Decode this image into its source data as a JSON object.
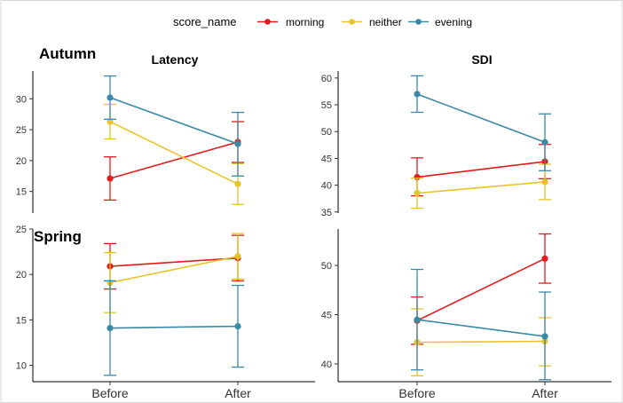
{
  "legend": {
    "title": "score_name",
    "entries": [
      {
        "label": "morning",
        "color": "#e41a1c"
      },
      {
        "label": "neither",
        "color": "#e8c42a"
      },
      {
        "label": "evening",
        "color": "#3a8aa6"
      }
    ]
  },
  "rows": [
    {
      "label": "Autumn"
    },
    {
      "label": "Spring"
    }
  ],
  "chart_data": [
    {
      "type": "line",
      "title": "Latency",
      "season": "Autumn",
      "categories": [
        "Before",
        "After"
      ],
      "ylim": [
        11.5,
        34.5
      ],
      "yticks": [
        15,
        20,
        25,
        30
      ],
      "series": [
        {
          "name": "morning",
          "color": "#e41a1c",
          "values": [
            17.1,
            23.0
          ],
          "err_low": [
            13.6,
            19.7
          ],
          "err_high": [
            20.6,
            26.3
          ]
        },
        {
          "name": "neither",
          "color": "#e8c42a",
          "values": [
            26.3,
            16.2
          ],
          "err_low": [
            23.5,
            12.9
          ],
          "err_high": [
            29.1,
            19.5
          ]
        },
        {
          "name": "evening",
          "color": "#3a8aa6",
          "values": [
            30.2,
            22.7
          ],
          "err_low": [
            26.7,
            17.5
          ],
          "err_high": [
            33.7,
            27.8
          ]
        }
      ]
    },
    {
      "type": "line",
      "title": "SDI",
      "season": "Autumn",
      "categories": [
        "Before",
        "After"
      ],
      "ylim": [
        34.8,
        61.3
      ],
      "yticks": [
        35,
        40,
        45,
        50,
        55,
        60
      ],
      "series": [
        {
          "name": "morning",
          "color": "#e41a1c",
          "values": [
            41.5,
            44.4
          ],
          "err_low": [
            38.0,
            41.2
          ],
          "err_high": [
            45.1,
            47.6
          ]
        },
        {
          "name": "neither",
          "color": "#e8c42a",
          "values": [
            38.5,
            40.6
          ],
          "err_low": [
            35.7,
            37.3
          ],
          "err_high": [
            41.3,
            43.9
          ]
        },
        {
          "name": "evening",
          "color": "#3a8aa6",
          "values": [
            57.0,
            48.0
          ],
          "err_low": [
            53.6,
            42.7
          ],
          "err_high": [
            60.4,
            53.3
          ]
        }
      ]
    },
    {
      "type": "line",
      "title": "",
      "season": "Spring",
      "categories": [
        "Before",
        "After"
      ],
      "ylim": [
        8.2,
        25.0
      ],
      "yticks": [
        10,
        15,
        20,
        25
      ],
      "series": [
        {
          "name": "morning",
          "color": "#e41a1c",
          "values": [
            20.9,
            21.8
          ],
          "err_low": [
            18.4,
            19.3
          ],
          "err_high": [
            23.4,
            24.3
          ]
        },
        {
          "name": "neither",
          "color": "#e8c42a",
          "values": [
            19.1,
            22.0
          ],
          "err_low": [
            15.8,
            19.5
          ],
          "err_high": [
            22.4,
            24.5
          ]
        },
        {
          "name": "evening",
          "color": "#3a8aa6",
          "values": [
            14.1,
            14.3
          ],
          "err_low": [
            8.9,
            9.8
          ],
          "err_high": [
            19.3,
            18.8
          ]
        }
      ]
    },
    {
      "type": "line",
      "title": "",
      "season": "Spring",
      "categories": [
        "Before",
        "After"
      ],
      "ylim": [
        38.2,
        53.7
      ],
      "yticks": [
        40,
        45,
        50
      ],
      "series": [
        {
          "name": "morning",
          "color": "#e41a1c",
          "values": [
            44.4,
            50.7
          ],
          "err_low": [
            42.0,
            48.2
          ],
          "err_high": [
            46.8,
            53.2
          ]
        },
        {
          "name": "neither",
          "color": "#e8c42a",
          "values": [
            42.2,
            42.3
          ],
          "err_low": [
            38.8,
            39.8
          ],
          "err_high": [
            45.6,
            44.7
          ]
        },
        {
          "name": "evening",
          "color": "#3a8aa6",
          "values": [
            44.5,
            42.8
          ],
          "err_low": [
            39.4,
            38.4
          ],
          "err_high": [
            49.6,
            47.3
          ]
        }
      ]
    }
  ]
}
